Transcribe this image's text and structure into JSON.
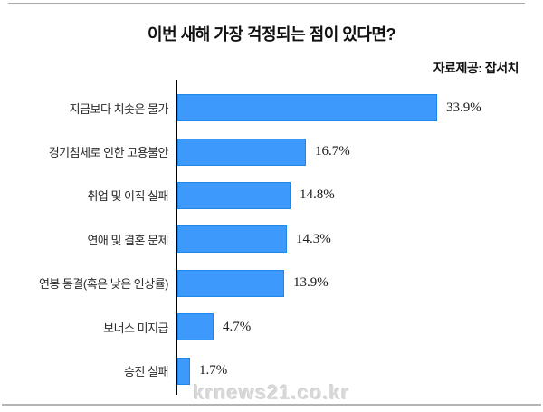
{
  "header": {
    "title": "이번 새해 가장 걱정되는 점이 있다면?",
    "source": "자료제공: 잡서치"
  },
  "footer": {
    "watermark": "krnews21.co.kr"
  },
  "chart_data": {
    "type": "bar",
    "orientation": "horizontal",
    "title": "이번 새해 가장 걱정되는 점이 있다면?",
    "source": "자료제공: 잡서치",
    "categories": [
      "지금보다 치솟은 물가",
      "경기침체로 인한 고용불안",
      "취업 및 이직 실패",
      "연애 및 결혼 문제",
      "연봉 동결(혹은 낮은 인상률)",
      "보너스 미지급",
      "승진 실패"
    ],
    "values": [
      33.9,
      16.7,
      14.8,
      14.3,
      13.9,
      4.7,
      1.7
    ],
    "value_labels": [
      "33.9%",
      "16.7%",
      "14.8%",
      "14.3%",
      "13.9%",
      "4.7%",
      "1.7%"
    ],
    "unit": "%",
    "xlim": [
      0,
      40
    ],
    "grid": false,
    "legend": false,
    "bar_color": "#3d9afc",
    "bar_border_color": "#1f86ea"
  }
}
